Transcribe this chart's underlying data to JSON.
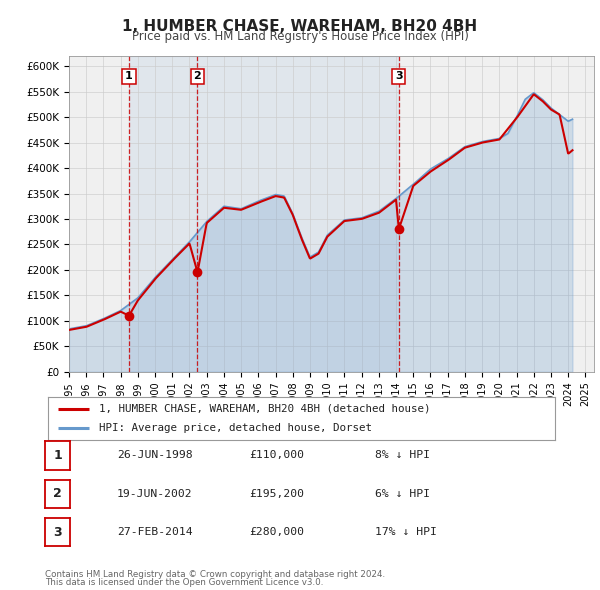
{
  "title": "1, HUMBER CHASE, WAREHAM, BH20 4BH",
  "subtitle": "Price paid vs. HM Land Registry's House Price Index (HPI)",
  "xlim": [
    1995.0,
    2025.5
  ],
  "ylim": [
    0,
    620000
  ],
  "yticks": [
    0,
    50000,
    100000,
    150000,
    200000,
    250000,
    300000,
    350000,
    400000,
    450000,
    500000,
    550000,
    600000
  ],
  "ytick_labels": [
    "£0",
    "£50K",
    "£100K",
    "£150K",
    "£200K",
    "£250K",
    "£300K",
    "£350K",
    "£400K",
    "£450K",
    "£500K",
    "£550K",
    "£600K"
  ],
  "xtick_years": [
    1995,
    1996,
    1997,
    1998,
    1999,
    2000,
    2001,
    2002,
    2003,
    2004,
    2005,
    2006,
    2007,
    2008,
    2009,
    2010,
    2011,
    2012,
    2013,
    2014,
    2015,
    2016,
    2017,
    2018,
    2019,
    2020,
    2021,
    2022,
    2023,
    2024,
    2025
  ],
  "sale_dates": [
    1998.484,
    2002.465,
    2014.162
  ],
  "sale_prices": [
    110000,
    195200,
    280000
  ],
  "sale_labels": [
    "1",
    "2",
    "3"
  ],
  "sale_info": [
    {
      "label": "1",
      "date": "26-JUN-1998",
      "price": "£110,000",
      "pct": "8% ↓ HPI"
    },
    {
      "label": "2",
      "date": "19-JUN-2002",
      "price": "£195,200",
      "pct": "6% ↓ HPI"
    },
    {
      "label": "3",
      "date": "27-FEB-2014",
      "price": "£280,000",
      "pct": "17% ↓ HPI"
    }
  ],
  "property_color": "#cc0000",
  "hpi_color": "#6699cc",
  "vline_color": "#cc0000",
  "background_color": "#f0f0f0",
  "grid_color": "#cccccc",
  "legend_label_property": "1, HUMBER CHASE, WAREHAM, BH20 4BH (detached house)",
  "legend_label_hpi": "HPI: Average price, detached house, Dorset",
  "footer1": "Contains HM Land Registry data © Crown copyright and database right 2024.",
  "footer2": "This data is licensed under the Open Government Licence v3.0."
}
